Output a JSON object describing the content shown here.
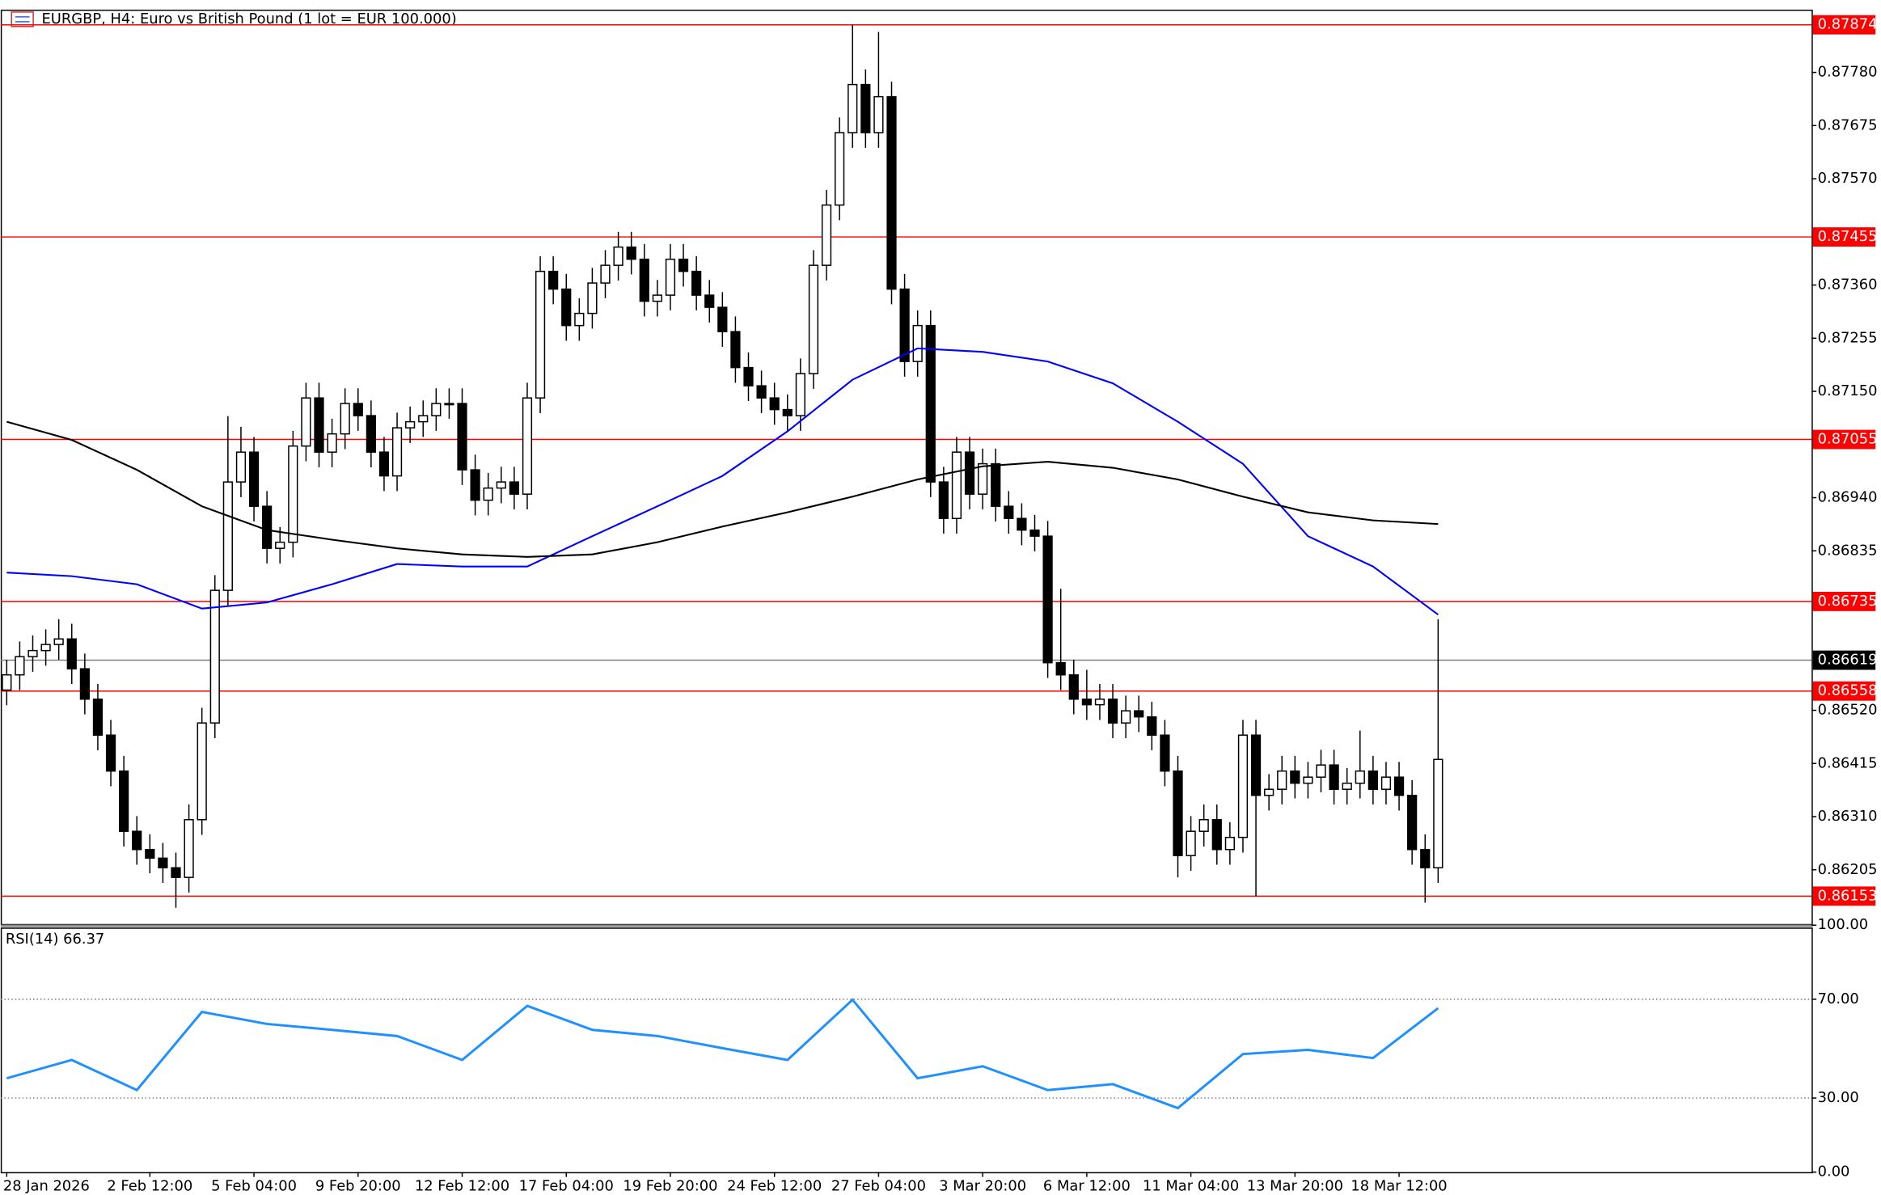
{
  "chart_data": [
    {
      "type": "candlestick",
      "title": "EURGBP, H4:  Euro vs British Pound (1 lot = EUR 100.000)",
      "xlim": [
        0,
        110
      ],
      "ylim": [
        0.86098,
        0.87904
      ],
      "yticks": [
        {
          "value": 0.8778,
          "label": "0.87780"
        },
        {
          "value": 0.87675,
          "label": "0.87675"
        },
        {
          "value": 0.8757,
          "label": "0.87570"
        },
        {
          "value": 0.8736,
          "label": "0.87360"
        },
        {
          "value": 0.87255,
          "label": "0.87255"
        },
        {
          "value": 0.8715,
          "label": "0.87150"
        },
        {
          "value": 0.8694,
          "label": "0.86940"
        },
        {
          "value": 0.86835,
          "label": "0.86835"
        },
        {
          "value": 0.8652,
          "label": "0.86520"
        },
        {
          "value": 0.86415,
          "label": "0.86415"
        },
        {
          "value": 0.8631,
          "label": "0.86310"
        },
        {
          "value": 0.86205,
          "label": "0.86205"
        }
      ],
      "xticks": [
        {
          "value": 0,
          "label": "28 Jan 2026"
        },
        {
          "value": 11,
          "label": "2 Feb 12:00"
        },
        {
          "value": 19,
          "label": "5 Feb 04:00"
        },
        {
          "value": 27,
          "label": "9 Feb 20:00"
        },
        {
          "value": 35,
          "label": "12 Feb 12:00"
        },
        {
          "value": 43,
          "label": "17 Feb 04:00"
        },
        {
          "value": 51,
          "label": "19 Feb 20:00"
        },
        {
          "value": 59,
          "label": "24 Feb 12:00"
        },
        {
          "value": 67,
          "label": "27 Feb 04:00"
        },
        {
          "value": 75,
          "label": "3 Mar 20:00"
        },
        {
          "value": 83,
          "label": "6 Mar 12:00"
        },
        {
          "value": 91,
          "label": "11 Mar 04:00"
        },
        {
          "value": 99,
          "label": "13 Mar 20:00"
        },
        {
          "value": 107,
          "label": "18 Mar 12:00"
        }
      ],
      "levels": [
        0.87874,
        0.87455,
        0.87055,
        0.86735,
        0.86558,
        0.86153
      ],
      "level_color": "#ff0000",
      "current_price": 0.86619,
      "up_color": "#ffffff",
      "down_color": "#000000",
      "candles": [
        [
          0.8656,
          0.8662,
          0.8653,
          0.8659
        ],
        [
          0.8659,
          0.86656,
          0.8656,
          0.86626
        ],
        [
          0.86626,
          0.86668,
          0.86596,
          0.86638
        ],
        [
          0.86638,
          0.8668,
          0.86608,
          0.8665
        ],
        [
          0.8665,
          0.867,
          0.8662,
          0.86661
        ],
        [
          0.86661,
          0.86691,
          0.86572,
          0.86602
        ],
        [
          0.86602,
          0.86632,
          0.86512,
          0.86542
        ],
        [
          0.86542,
          0.86572,
          0.86441,
          0.86471
        ],
        [
          0.86471,
          0.86501,
          0.8637,
          0.864
        ],
        [
          0.864,
          0.8643,
          0.86251,
          0.86281
        ],
        [
          0.86281,
          0.86311,
          0.86215,
          0.86245
        ],
        [
          0.86245,
          0.86275,
          0.86198,
          0.86228
        ],
        [
          0.86228,
          0.86258,
          0.86179,
          0.86209
        ],
        [
          0.86209,
          0.86239,
          0.8613,
          0.8619
        ],
        [
          0.8619,
          0.86334,
          0.8616,
          0.86304
        ],
        [
          0.86304,
          0.86525,
          0.86274,
          0.86495
        ],
        [
          0.86495,
          0.86787,
          0.86465,
          0.86757
        ],
        [
          0.86757,
          0.87101,
          0.86727,
          0.86971
        ],
        [
          0.86971,
          0.8708,
          0.86941,
          0.8703
        ],
        [
          0.8703,
          0.8706,
          0.86893,
          0.86923
        ],
        [
          0.86923,
          0.86953,
          0.8681,
          0.8684
        ],
        [
          0.8684,
          0.86882,
          0.8681,
          0.86852
        ],
        [
          0.86852,
          0.87072,
          0.86822,
          0.87042
        ],
        [
          0.87042,
          0.87167,
          0.87012,
          0.87137
        ],
        [
          0.87137,
          0.87167,
          0.87,
          0.8703
        ],
        [
          0.8703,
          0.87096,
          0.87,
          0.87066
        ],
        [
          0.87066,
          0.87156,
          0.87036,
          0.87126
        ],
        [
          0.87126,
          0.87156,
          0.87072,
          0.87102
        ],
        [
          0.87102,
          0.87132,
          0.87,
          0.8703
        ],
        [
          0.8703,
          0.8706,
          0.86953,
          0.86983
        ],
        [
          0.86983,
          0.87108,
          0.86953,
          0.87078
        ],
        [
          0.87078,
          0.8712,
          0.87048,
          0.8709
        ],
        [
          0.8709,
          0.87132,
          0.8706,
          0.87102
        ],
        [
          0.87102,
          0.87156,
          0.87072,
          0.87126
        ],
        [
          0.87126,
          0.87156,
          0.87096,
          0.87126
        ],
        [
          0.87126,
          0.87156,
          0.86965,
          0.86995
        ],
        [
          0.86995,
          0.87025,
          0.86905,
          0.86935
        ],
        [
          0.86935,
          0.86989,
          0.86905,
          0.86959
        ],
        [
          0.86959,
          0.87001,
          0.86929,
          0.86971
        ],
        [
          0.86971,
          0.87001,
          0.86917,
          0.86947
        ],
        [
          0.86947,
          0.87167,
          0.86917,
          0.87137
        ],
        [
          0.87137,
          0.87417,
          0.87107,
          0.87387
        ],
        [
          0.87387,
          0.87417,
          0.87322,
          0.87352
        ],
        [
          0.87352,
          0.87382,
          0.8725,
          0.8728
        ],
        [
          0.8728,
          0.87334,
          0.8725,
          0.87304
        ],
        [
          0.87304,
          0.87394,
          0.87274,
          0.87364
        ],
        [
          0.87364,
          0.87429,
          0.87334,
          0.87399
        ],
        [
          0.87399,
          0.87465,
          0.87369,
          0.87435
        ],
        [
          0.87435,
          0.87465,
          0.87381,
          0.87411
        ],
        [
          0.87411,
          0.87441,
          0.87298,
          0.87328
        ],
        [
          0.87328,
          0.8737,
          0.87298,
          0.8734
        ],
        [
          0.8734,
          0.87441,
          0.8731,
          0.87411
        ],
        [
          0.87411,
          0.87441,
          0.87357,
          0.87387
        ],
        [
          0.87387,
          0.87417,
          0.8731,
          0.8734
        ],
        [
          0.8734,
          0.8737,
          0.87286,
          0.87316
        ],
        [
          0.87316,
          0.87346,
          0.87238,
          0.87268
        ],
        [
          0.87268,
          0.87298,
          0.87167,
          0.87197
        ],
        [
          0.87197,
          0.87227,
          0.87131,
          0.87161
        ],
        [
          0.87161,
          0.87191,
          0.87107,
          0.87137
        ],
        [
          0.87137,
          0.87167,
          0.87084,
          0.87114
        ],
        [
          0.87114,
          0.87144,
          0.87072,
          0.87102
        ],
        [
          0.87102,
          0.87215,
          0.87072,
          0.87185
        ],
        [
          0.87185,
          0.87429,
          0.87155,
          0.87399
        ],
        [
          0.87399,
          0.87548,
          0.87369,
          0.87518
        ],
        [
          0.87518,
          0.87691,
          0.87488,
          0.87661
        ],
        [
          0.87661,
          0.87874,
          0.87631,
          0.87756
        ],
        [
          0.87756,
          0.87786,
          0.87631,
          0.87661
        ],
        [
          0.87661,
          0.8786,
          0.87631,
          0.87732
        ],
        [
          0.87732,
          0.87762,
          0.87322,
          0.87352
        ],
        [
          0.87352,
          0.87382,
          0.87179,
          0.87209
        ],
        [
          0.87209,
          0.8731,
          0.87179,
          0.8728
        ],
        [
          0.8728,
          0.8731,
          0.86941,
          0.86971
        ],
        [
          0.86971,
          0.87001,
          0.86869,
          0.86899
        ],
        [
          0.86899,
          0.8706,
          0.86869,
          0.8703
        ],
        [
          0.8703,
          0.8706,
          0.86917,
          0.86947
        ],
        [
          0.86947,
          0.87037,
          0.86917,
          0.87007
        ],
        [
          0.87007,
          0.87037,
          0.86893,
          0.86923
        ],
        [
          0.86923,
          0.86953,
          0.86869,
          0.86899
        ],
        [
          0.86899,
          0.86929,
          0.86846,
          0.86876
        ],
        [
          0.86876,
          0.86906,
          0.86834,
          0.86864
        ],
        [
          0.86864,
          0.86894,
          0.86584,
          0.86614
        ],
        [
          0.86614,
          0.8676,
          0.8656,
          0.8659
        ],
        [
          0.8659,
          0.8662,
          0.86512,
          0.86542
        ],
        [
          0.86542,
          0.866,
          0.86501,
          0.86531
        ],
        [
          0.86531,
          0.86572,
          0.86501,
          0.86542
        ],
        [
          0.86542,
          0.86572,
          0.86465,
          0.86495
        ],
        [
          0.86495,
          0.86549,
          0.86465,
          0.86519
        ],
        [
          0.86519,
          0.86549,
          0.86477,
          0.86507
        ],
        [
          0.86507,
          0.86537,
          0.86441,
          0.86471
        ],
        [
          0.86471,
          0.86501,
          0.8637,
          0.864
        ],
        [
          0.864,
          0.8643,
          0.8619,
          0.86233
        ],
        [
          0.86233,
          0.86311,
          0.86203,
          0.86281
        ],
        [
          0.86281,
          0.86334,
          0.86251,
          0.86304
        ],
        [
          0.86304,
          0.86334,
          0.86215,
          0.86245
        ],
        [
          0.86245,
          0.86299,
          0.86215,
          0.86269
        ],
        [
          0.86269,
          0.86501,
          0.86239,
          0.86471
        ],
        [
          0.86471,
          0.86501,
          0.86153,
          0.86352
        ],
        [
          0.86352,
          0.86394,
          0.86322,
          0.86364
        ],
        [
          0.86364,
          0.8643,
          0.86334,
          0.864
        ],
        [
          0.864,
          0.8643,
          0.86346,
          0.86376
        ],
        [
          0.86376,
          0.86418,
          0.86346,
          0.86388
        ],
        [
          0.86388,
          0.86442,
          0.86358,
          0.86412
        ],
        [
          0.86412,
          0.86442,
          0.86334,
          0.86364
        ],
        [
          0.86364,
          0.86406,
          0.86334,
          0.86376
        ],
        [
          0.86376,
          0.8648,
          0.86346,
          0.864
        ],
        [
          0.864,
          0.8643,
          0.86334,
          0.86364
        ],
        [
          0.86364,
          0.86418,
          0.86334,
          0.86388
        ],
        [
          0.86388,
          0.86418,
          0.86322,
          0.86352
        ],
        [
          0.86352,
          0.86382,
          0.86215,
          0.86245
        ],
        [
          0.86245,
          0.86275,
          0.8614,
          0.86209
        ],
        [
          0.86209,
          0.867,
          0.86179,
          0.86423
        ]
      ],
      "series": [
        {
          "color": "#0000ff",
          "x": [
            0,
            5,
            10,
            15,
            20,
            25,
            30,
            35,
            40,
            45,
            50,
            55,
            60,
            65,
            70,
            75,
            80,
            85,
            90,
            95,
            100,
            105,
            110
          ],
          "values": [
            0.86792,
            0.86785,
            0.86769,
            0.86721,
            0.86733,
            0.86769,
            0.86809,
            0.86804,
            0.86804,
            0.86864,
            0.86923,
            0.86983,
            0.87071,
            0.87173,
            0.87235,
            0.87228,
            0.87209,
            0.87166,
            0.8709,
            0.87007,
            0.86864,
            0.86804,
            0.86709
          ]
        },
        {
          "color": "#000000",
          "x": [
            0,
            5,
            10,
            15,
            20,
            25,
            30,
            35,
            40,
            45,
            50,
            55,
            60,
            65,
            70,
            75,
            80,
            85,
            90,
            95,
            100,
            105,
            110
          ],
          "values": [
            0.8709,
            0.87054,
            0.86995,
            0.86923,
            0.86876,
            0.86857,
            0.8684,
            0.86828,
            0.86823,
            0.86828,
            0.86852,
            0.86883,
            0.86911,
            0.86942,
            0.86976,
            0.87002,
            0.87011,
            0.86999,
            0.86976,
            0.86942,
            0.86911,
            0.86895,
            0.86888
          ]
        }
      ]
    },
    {
      "type": "line",
      "title": "RSI(14) 66.37",
      "xlim": [
        0,
        110
      ],
      "ylim": [
        0,
        100
      ],
      "yticks": [
        {
          "value": 100,
          "label": "100.00"
        },
        {
          "value": 70,
          "label": "70.00"
        },
        {
          "value": 30,
          "label": "30.00"
        },
        {
          "value": 0,
          "label": "0.00"
        }
      ],
      "levels": [
        70,
        30
      ],
      "series": [
        {
          "color": "#1e90ff",
          "x": [
            0,
            5,
            10,
            15,
            20,
            25,
            30,
            35,
            40,
            45,
            50,
            55,
            60,
            65,
            70,
            75,
            80,
            85,
            90,
            95,
            100,
            105,
            110
          ],
          "values": [
            38.0,
            45.4,
            33.2,
            64.9,
            60.0,
            57.6,
            55.1,
            45.4,
            67.3,
            57.6,
            55.1,
            50.2,
            45.4,
            69.8,
            38.0,
            42.9,
            33.2,
            35.6,
            25.9,
            47.8,
            49.5,
            46.2,
            66.4
          ]
        }
      ]
    }
  ]
}
